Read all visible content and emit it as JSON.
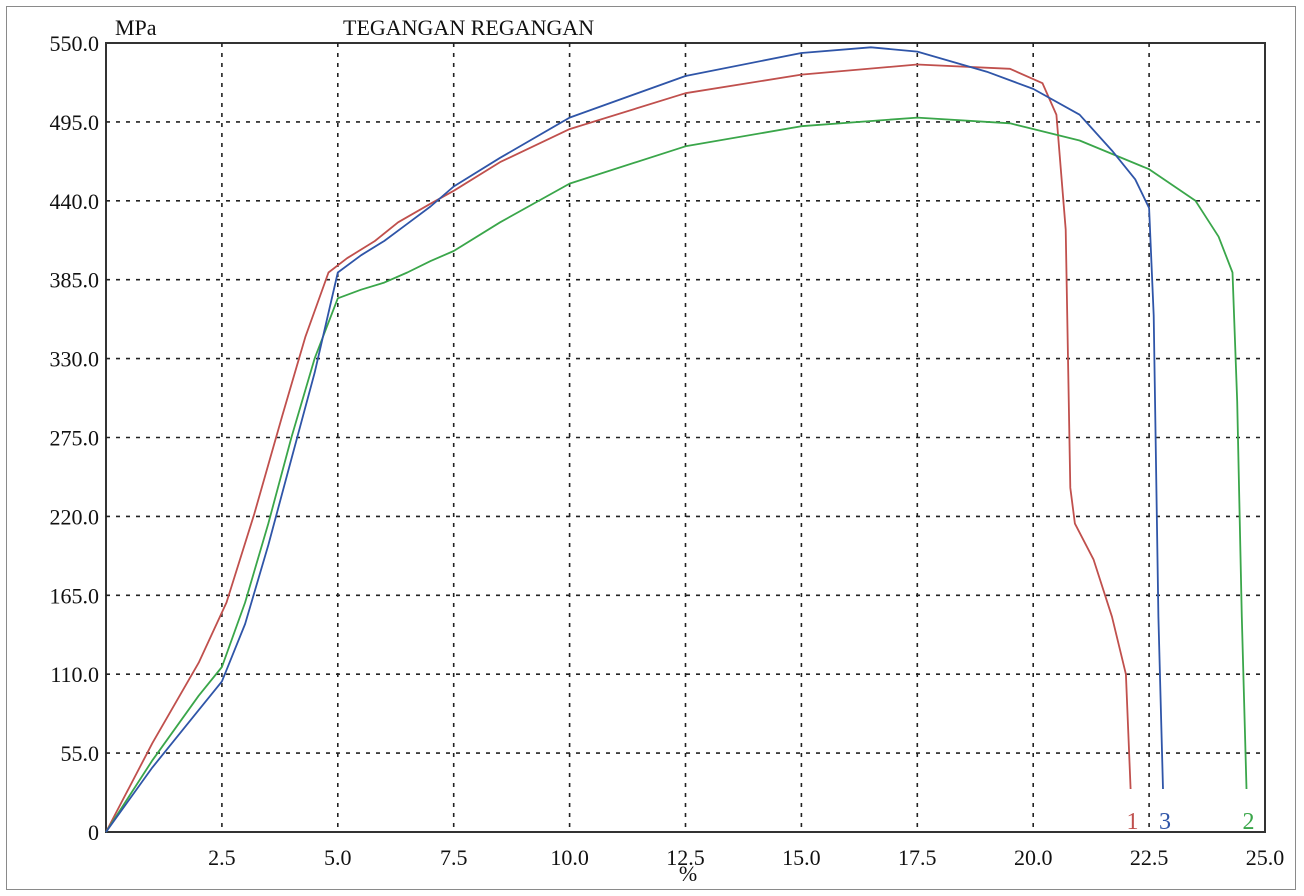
{
  "chart_data": {
    "type": "line",
    "title": "TEGANGAN REGANGAN",
    "xlabel": "%",
    "ylabel": "MPa",
    "xlim": [
      0,
      25.0
    ],
    "ylim": [
      0,
      550.0
    ],
    "x_ticks": [
      "2.5",
      "5.0",
      "7.5",
      "10.0",
      "12.5",
      "15.0",
      "17.5",
      "20.0",
      "22.5",
      "25.0"
    ],
    "y_ticks": [
      "0",
      "55.0",
      "110.0",
      "165.0",
      "220.0",
      "275.0",
      "330.0",
      "385.0",
      "440.0",
      "495.0",
      "550.0"
    ],
    "grid": true,
    "series": [
      {
        "name": "1",
        "color": "#c0504d",
        "points": [
          [
            0,
            0
          ],
          [
            1.0,
            62
          ],
          [
            2.0,
            118
          ],
          [
            2.6,
            160
          ],
          [
            3.2,
            222
          ],
          [
            3.8,
            290
          ],
          [
            4.3,
            345
          ],
          [
            4.8,
            390
          ],
          [
            5.2,
            400
          ],
          [
            5.8,
            412
          ],
          [
            6.3,
            425
          ],
          [
            7.0,
            438
          ],
          [
            7.5,
            447
          ],
          [
            8.5,
            467
          ],
          [
            10.0,
            490
          ],
          [
            12.5,
            515
          ],
          [
            15.0,
            528
          ],
          [
            17.5,
            535
          ],
          [
            19.5,
            532
          ],
          [
            20.2,
            522
          ],
          [
            20.5,
            500
          ],
          [
            20.7,
            420
          ],
          [
            20.8,
            240
          ],
          [
            20.9,
            215
          ],
          [
            21.3,
            190
          ],
          [
            21.7,
            150
          ],
          [
            22.0,
            110
          ],
          [
            22.1,
            30
          ]
        ]
      },
      {
        "name": "2",
        "color": "#3aa64a",
        "points": [
          [
            0,
            0
          ],
          [
            1.0,
            50
          ],
          [
            2.0,
            95
          ],
          [
            2.5,
            115
          ],
          [
            3.0,
            160
          ],
          [
            3.5,
            215
          ],
          [
            4.0,
            275
          ],
          [
            4.5,
            330
          ],
          [
            5.0,
            372
          ],
          [
            5.5,
            378
          ],
          [
            6.0,
            383
          ],
          [
            6.5,
            390
          ],
          [
            7.0,
            398
          ],
          [
            7.5,
            405
          ],
          [
            8.5,
            425
          ],
          [
            10.0,
            452
          ],
          [
            12.5,
            478
          ],
          [
            15.0,
            492
          ],
          [
            17.5,
            498
          ],
          [
            19.5,
            494
          ],
          [
            21.0,
            482
          ],
          [
            22.5,
            462
          ],
          [
            23.5,
            440
          ],
          [
            24.0,
            415
          ],
          [
            24.3,
            390
          ],
          [
            24.4,
            300
          ],
          [
            24.5,
            150
          ],
          [
            24.6,
            30
          ]
        ]
      },
      {
        "name": "3",
        "color": "#2f55a8",
        "points": [
          [
            0,
            0
          ],
          [
            1.0,
            45
          ],
          [
            2.0,
            85
          ],
          [
            2.5,
            105
          ],
          [
            3.0,
            145
          ],
          [
            3.5,
            200
          ],
          [
            4.0,
            260
          ],
          [
            4.5,
            320
          ],
          [
            5.0,
            390
          ],
          [
            5.5,
            402
          ],
          [
            6.0,
            412
          ],
          [
            6.5,
            424
          ],
          [
            7.0,
            436
          ],
          [
            7.5,
            450
          ],
          [
            8.5,
            470
          ],
          [
            10.0,
            498
          ],
          [
            12.5,
            527
          ],
          [
            15.0,
            543
          ],
          [
            16.5,
            547
          ],
          [
            17.5,
            544
          ],
          [
            19.0,
            530
          ],
          [
            20.0,
            518
          ],
          [
            21.0,
            500
          ],
          [
            21.7,
            475
          ],
          [
            22.2,
            455
          ],
          [
            22.5,
            435
          ],
          [
            22.6,
            360
          ],
          [
            22.7,
            150
          ],
          [
            22.8,
            30
          ]
        ]
      }
    ]
  }
}
